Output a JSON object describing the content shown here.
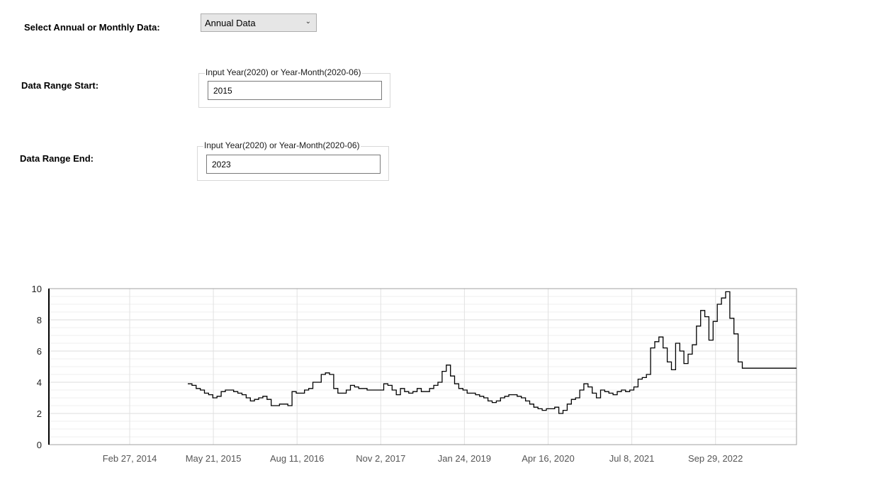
{
  "form": {
    "mode_label": "Select Annual or Monthly Data:",
    "mode_select": {
      "selected": "Annual Data"
    },
    "start_label": "Data Range Start:",
    "start_group_legend": "Input Year(2020) or Year-Month(2020-06)",
    "start_value": "2015",
    "end_label": "Data Range End:",
    "end_group_legend": "Input Year(2020) or Year-Month(2020-06)",
    "end_value": "2023"
  },
  "chart_data": {
    "type": "line",
    "title": "",
    "xlabel": "",
    "ylabel": "",
    "ylim": [
      0,
      10
    ],
    "yticks": [
      "0",
      "2",
      "4",
      "6",
      "8",
      "10"
    ],
    "xticks": [
      "Feb 27, 2014",
      "May 21, 2015",
      "Aug 11, 2016",
      "Nov 2, 2017",
      "Jan 24, 2019",
      "Apr 16, 2020",
      "Jul 8, 2021",
      "Sep 29, 2022"
    ],
    "grid": true,
    "line_color": "#000000",
    "series": [
      {
        "values": [
          3.9,
          3.8,
          3.6,
          3.5,
          3.3,
          3.2,
          3.0,
          3.1,
          3.4,
          3.5,
          3.5,
          3.4,
          3.3,
          3.2,
          3.0,
          2.8,
          2.9,
          3.0,
          3.1,
          2.9,
          2.5,
          2.5,
          2.6,
          2.6,
          2.5,
          3.4,
          3.3,
          3.3,
          3.5,
          3.6,
          4.0,
          4.0,
          4.5,
          4.6,
          4.5,
          3.6,
          3.3,
          3.3,
          3.5,
          3.8,
          3.7,
          3.6,
          3.6,
          3.5,
          3.5,
          3.5,
          3.5,
          3.9,
          3.8,
          3.5,
          3.2,
          3.6,
          3.4,
          3.3,
          3.4,
          3.6,
          3.4,
          3.4,
          3.6,
          3.8,
          4.0,
          4.7,
          5.1,
          4.4,
          3.9,
          3.6,
          3.5,
          3.3,
          3.3,
          3.2,
          3.1,
          3.0,
          2.8,
          2.7,
          2.8,
          3.0,
          3.1,
          3.2,
          3.2,
          3.1,
          3.0,
          2.8,
          2.6,
          2.4,
          2.3,
          2.2,
          2.3,
          2.3,
          2.4,
          2.0,
          2.2,
          2.6,
          2.9,
          3.0,
          3.5,
          3.9,
          3.7,
          3.3,
          3.0,
          3.5,
          3.4,
          3.3,
          3.2,
          3.4,
          3.5,
          3.4,
          3.5,
          3.7,
          4.2,
          4.3,
          4.5,
          6.2,
          6.6,
          6.9,
          6.2,
          5.3,
          4.8,
          6.5,
          6.0,
          5.2,
          5.8,
          6.4,
          7.6,
          8.6,
          8.2,
          6.7,
          7.9,
          9.0,
          9.4,
          9.8,
          8.1,
          7.1,
          5.3,
          4.9,
          4.9,
          4.9,
          4.9,
          4.9,
          4.9,
          4.9,
          4.9,
          4.9,
          4.9,
          4.9,
          4.9,
          4.9
        ]
      }
    ]
  }
}
